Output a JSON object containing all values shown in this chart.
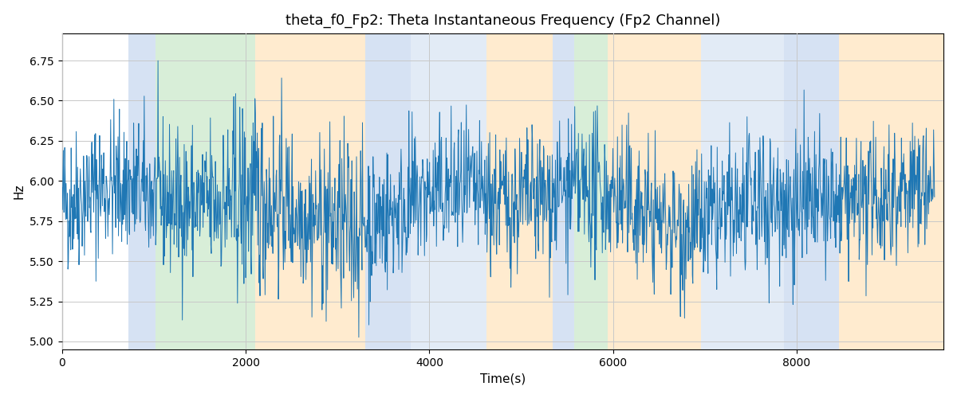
{
  "title": "theta_f0_Fp2: Theta Instantaneous Frequency (Fp2 Channel)",
  "xlabel": "Time(s)",
  "ylabel": "Hz",
  "ylim": [
    4.95,
    6.92
  ],
  "xlim": [
    0,
    9600
  ],
  "line_color": "#1f77b4",
  "line_width": 0.7,
  "bg_color": "#ffffff",
  "title_fontsize": 13,
  "label_fontsize": 11,
  "grid_color": "#c8c8c8",
  "yticks": [
    5.0,
    5.25,
    5.5,
    5.75,
    6.0,
    6.25,
    6.5,
    6.75
  ],
  "xticks": [
    0,
    2000,
    4000,
    6000,
    8000
  ],
  "bg_bands": [
    {
      "xmin": 720,
      "xmax": 1020,
      "color": "#aec6e8",
      "alpha": 0.5
    },
    {
      "xmin": 1020,
      "xmax": 2100,
      "color": "#b2dfb2",
      "alpha": 0.5
    },
    {
      "xmin": 2100,
      "xmax": 3300,
      "color": "#ffd9a0",
      "alpha": 0.5
    },
    {
      "xmin": 3300,
      "xmax": 3540,
      "color": "#aec6e8",
      "alpha": 0.5
    },
    {
      "xmin": 3540,
      "xmax": 3800,
      "color": "#aec6e8",
      "alpha": 0.5
    },
    {
      "xmin": 3800,
      "xmax": 4620,
      "color": "#aec6e8",
      "alpha": 0.35
    },
    {
      "xmin": 4620,
      "xmax": 5340,
      "color": "#ffd9a0",
      "alpha": 0.5
    },
    {
      "xmin": 5340,
      "xmax": 5580,
      "color": "#aec6e8",
      "alpha": 0.5
    },
    {
      "xmin": 5580,
      "xmax": 5940,
      "color": "#b2dfb2",
      "alpha": 0.5
    },
    {
      "xmin": 5940,
      "xmax": 6960,
      "color": "#ffd9a0",
      "alpha": 0.5
    },
    {
      "xmin": 6960,
      "xmax": 7860,
      "color": "#aec6e8",
      "alpha": 0.35
    },
    {
      "xmin": 7860,
      "xmax": 8460,
      "color": "#aec6e8",
      "alpha": 0.5
    },
    {
      "xmin": 8460,
      "xmax": 9600,
      "color": "#ffd9a0",
      "alpha": 0.5
    }
  ],
  "seed": 42,
  "n_points": 1900,
  "mean_freq": 5.85,
  "noise_amp": 0.22
}
